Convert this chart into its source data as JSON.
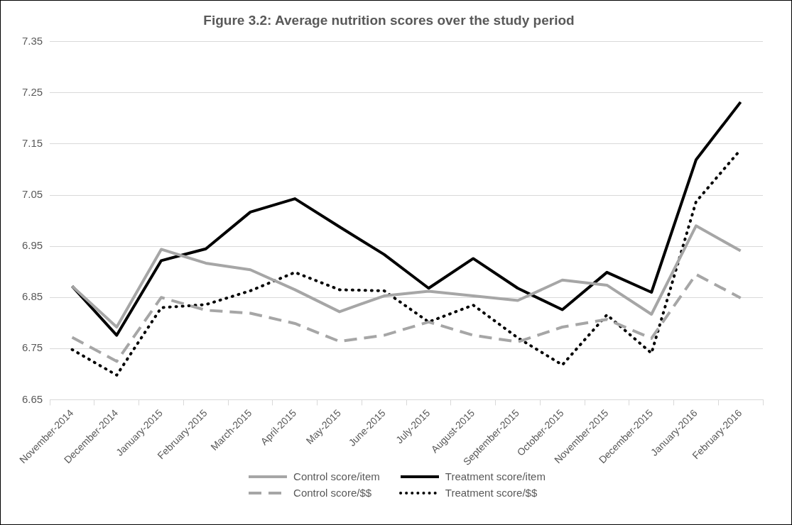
{
  "chart_data": {
    "type": "line",
    "title": "Figure 3.2: Average nutrition scores over the study period",
    "categories": [
      "November-2014",
      "December-2014",
      "January-2015",
      "February-2015",
      "March-2015",
      "April-2015",
      "May-2015",
      "June-2015",
      "July-2015",
      "August-2015",
      "September-2015",
      "October-2015",
      "November-2015",
      "December-2015",
      "January-2016",
      "February-2016"
    ],
    "series": [
      {
        "name": "Control score/item",
        "color": "#a6a6a6",
        "line_style": "solid",
        "values": [
          6.872,
          6.792,
          6.944,
          6.917,
          6.904,
          6.865,
          6.822,
          6.853,
          6.862,
          6.853,
          6.844,
          6.884,
          6.874,
          6.817,
          6.99,
          6.941
        ]
      },
      {
        "name": "Treatment score/item",
        "color": "#000000",
        "line_style": "solid",
        "values": [
          6.872,
          6.776,
          6.922,
          6.945,
          7.017,
          7.043,
          6.988,
          6.934,
          6.868,
          6.926,
          6.868,
          6.826,
          6.899,
          6.86,
          7.119,
          7.232
        ]
      },
      {
        "name": "Control score/$$",
        "color": "#a6a6a6",
        "line_style": "dashed",
        "values": [
          6.772,
          6.725,
          6.85,
          6.825,
          6.819,
          6.799,
          6.764,
          6.776,
          6.802,
          6.776,
          6.763,
          6.792,
          6.807,
          6.77,
          6.895,
          6.849
        ]
      },
      {
        "name": "Treatment score/$$",
        "color": "#000000",
        "line_style": "dotted",
        "values": [
          6.748,
          6.698,
          6.83,
          6.836,
          6.863,
          6.899,
          6.865,
          6.863,
          6.802,
          6.835,
          6.771,
          6.718,
          6.816,
          6.741,
          7.037,
          7.139
        ]
      }
    ],
    "ylim": [
      6.65,
      7.35
    ],
    "yticks": [
      6.65,
      6.75,
      6.85,
      6.95,
      7.05,
      7.15,
      7.25,
      7.35
    ],
    "grid": "y",
    "legend": "bottom",
    "marker": "none"
  }
}
